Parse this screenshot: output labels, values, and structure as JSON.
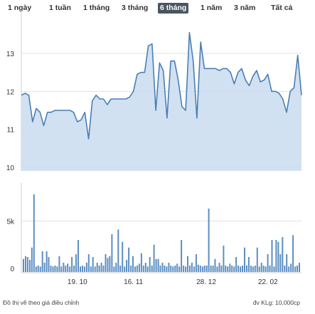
{
  "tabs": [
    {
      "label": "1 ngày",
      "active": false
    },
    {
      "label": "1 tuần",
      "active": false
    },
    {
      "label": "1 tháng",
      "active": false
    },
    {
      "label": "3 tháng",
      "active": false
    },
    {
      "label": "6 tháng",
      "active": true
    },
    {
      "label": "1 năm",
      "active": false
    },
    {
      "label": "3 năm",
      "active": false
    },
    {
      "label": "Tất cả",
      "active": false
    }
  ],
  "footer": {
    "note": "Đồ thị vẽ theo giá điều chỉnh",
    "unit": "đv KLg: 10,000cp"
  },
  "colors": {
    "line": "#4a7fb5",
    "area": "#c9dcf0",
    "bar": "#5b8ec2",
    "grid": "#e0e0e0"
  },
  "chart_data": [
    {
      "type": "area",
      "yticks": [
        10,
        11,
        12,
        13
      ],
      "ylim": [
        10,
        13.5
      ],
      "x_tick_labels": [
        "19. 10",
        "16. 11",
        "28. 12",
        "22. 02"
      ],
      "x_tick_index": [
        10,
        20,
        33,
        44
      ],
      "values": [
        11.9,
        11.95,
        11.9,
        11.2,
        11.55,
        11.45,
        11.1,
        11.45,
        11.45,
        11.5,
        11.5,
        11.5,
        11.5,
        11.5,
        11.45,
        11.2,
        11.25,
        11.45,
        10.75,
        11.75,
        11.9,
        11.8,
        11.8,
        11.65,
        11.8,
        11.8,
        11.8,
        11.8,
        11.8,
        11.85,
        12.0,
        12.45,
        12.5,
        12.5,
        13.2,
        13.25,
        11.5,
        12.75,
        12.55,
        11.3,
        12.8,
        12.8,
        12.3,
        11.6,
        11.5,
        13.55,
        12.8,
        11.3,
        13.3,
        12.6,
        12.6,
        12.6,
        12.6,
        12.55,
        12.6,
        12.6,
        12.5,
        12.2,
        12.5,
        12.6,
        12.3,
        12.15,
        12.4,
        12.55,
        12.25,
        12.3,
        12.45,
        12.0,
        12.0,
        11.95,
        11.8,
        11.45,
        12.0,
        12.1,
        12.95,
        11.9
      ]
    },
    {
      "type": "bar",
      "yticks": [
        0,
        5
      ],
      "ytick_labels": [
        "0",
        "5k"
      ],
      "ylim": [
        0,
        9
      ],
      "values": [
        1.0,
        1.3,
        1.2,
        0.9,
        2.2,
        7.8,
        0.2,
        0.3,
        0.2,
        1.8,
        0.6,
        1.8,
        1.2,
        0.3,
        0.2,
        0.3,
        0.2,
        1.3,
        0.2,
        0.6,
        0.3,
        0.5,
        0.2,
        1.2,
        0.3,
        1.5,
        3.0,
        0.2,
        0.3,
        0.2,
        0.6,
        1.5,
        0.2,
        1.2,
        0.2,
        0.6,
        0.3,
        0.6,
        0.3,
        1.5,
        1.1,
        1.3,
        3.6,
        0.2,
        0.6,
        4.1,
        0.3,
        2.8,
        0.2,
        0.9,
        2.2,
        0.3,
        1.3,
        0.2,
        0.3,
        0.5,
        1.6,
        0.3,
        0.6,
        0.2,
        1.2,
        0.3,
        2.5,
        1.0,
        1.0,
        0.3,
        0.6,
        0.3,
        0.2,
        0.6,
        0.3,
        0.2,
        0.3,
        0.5,
        0.2,
        3.0,
        0.3,
        0.2,
        1.3,
        0.3,
        0.6,
        0.2,
        1.5,
        0.4,
        0.3,
        0.2,
        0.3,
        0.3,
        6.3,
        0.3,
        0.3,
        1.0,
        0.2,
        0.6,
        0.3,
        2.4,
        0.3,
        0.2,
        0.5,
        0.3,
        0.2,
        1.2,
        0.3,
        0.2,
        0.3,
        2.2,
        0.3,
        1.2,
        0.3,
        0.2,
        0.3,
        2.2,
        0.2,
        0.6,
        0.3,
        0.2,
        1.5,
        0.3,
        3.0,
        0.2,
        3.0,
        2.8,
        1.5,
        3.3,
        0.3,
        1.5,
        0.2,
        0.5,
        3.5,
        0.2,
        0.3,
        0.6
      ]
    }
  ]
}
